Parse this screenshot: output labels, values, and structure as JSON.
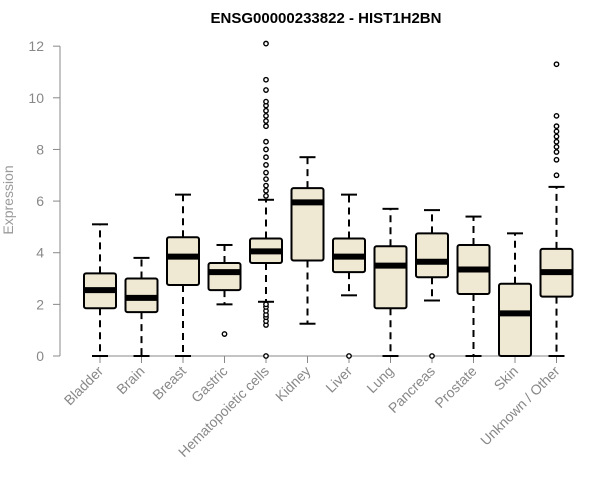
{
  "chart_data": {
    "type": "boxplot",
    "title": "ENSG00000233822 - HIST1H2BN",
    "xlabel": "",
    "ylabel": "Expression",
    "ylim": [
      0,
      12.2
    ],
    "yticks": [
      0,
      2,
      4,
      6,
      8,
      10,
      12
    ],
    "grid": false,
    "colors": {
      "box_fill": "#efe8d2",
      "box_stroke": "#000000",
      "axis": "#888888",
      "label": "#888888"
    },
    "categories": [
      "Bladder",
      "Brain",
      "Breast",
      "Gastric",
      "Hematopoietic cells",
      "Kidney",
      "Liver",
      "Lung",
      "Pancreas",
      "Prostate",
      "Skin",
      "Unknown / Other"
    ],
    "boxes": [
      {
        "category": "Bladder",
        "whisker_low": 0,
        "q1": 1.85,
        "median": 2.55,
        "q3": 3.2,
        "whisker_high": 5.1,
        "outliers": []
      },
      {
        "category": "Brain",
        "whisker_low": 0,
        "q1": 1.7,
        "median": 2.25,
        "q3": 3.0,
        "whisker_high": 3.8,
        "outliers": []
      },
      {
        "category": "Breast",
        "whisker_low": 0,
        "q1": 2.75,
        "median": 3.85,
        "q3": 4.6,
        "whisker_high": 6.25,
        "outliers": []
      },
      {
        "category": "Gastric",
        "whisker_low": 2.0,
        "q1": 2.55,
        "median": 3.25,
        "q3": 3.6,
        "whisker_high": 4.3,
        "outliers": [
          0.85
        ]
      },
      {
        "category": "Hematopoietic cells",
        "whisker_low": 2.1,
        "q1": 3.6,
        "median": 4.05,
        "q3": 4.55,
        "whisker_high": 6.05,
        "outliers": [
          0,
          1.2,
          1.35,
          1.5,
          1.6,
          1.75,
          1.9,
          2.0,
          6.2,
          6.4,
          6.6,
          6.85,
          7.1,
          7.4,
          7.7,
          8.0,
          8.3,
          8.9,
          9.1,
          9.3,
          9.5,
          9.7,
          9.85,
          10.3,
          10.7,
          12.1
        ]
      },
      {
        "category": "Kidney",
        "whisker_low": 1.25,
        "q1": 3.7,
        "median": 5.95,
        "q3": 6.5,
        "whisker_high": 7.7,
        "outliers": []
      },
      {
        "category": "Liver",
        "whisker_low": 2.35,
        "q1": 3.25,
        "median": 3.85,
        "q3": 4.55,
        "whisker_high": 6.25,
        "outliers": [
          0
        ]
      },
      {
        "category": "Lung",
        "whisker_low": 0,
        "q1": 1.85,
        "median": 3.5,
        "q3": 4.25,
        "whisker_high": 5.7,
        "outliers": []
      },
      {
        "category": "Pancreas",
        "whisker_low": 2.15,
        "q1": 3.05,
        "median": 3.65,
        "q3": 4.75,
        "whisker_high": 5.65,
        "outliers": [
          0
        ]
      },
      {
        "category": "Prostate",
        "whisker_low": 0,
        "q1": 2.4,
        "median": 3.35,
        "q3": 4.3,
        "whisker_high": 5.4,
        "outliers": []
      },
      {
        "category": "Skin",
        "whisker_low": 0,
        "q1": 0,
        "median": 1.65,
        "q3": 2.8,
        "whisker_high": 4.75,
        "outliers": []
      },
      {
        "category": "Unknown / Other",
        "whisker_low": 0,
        "q1": 2.3,
        "median": 3.25,
        "q3": 4.15,
        "whisker_high": 6.55,
        "outliers": [
          7.0,
          7.6,
          7.9,
          8.1,
          8.3,
          8.5,
          8.7,
          8.9,
          9.3,
          11.3
        ]
      }
    ]
  }
}
